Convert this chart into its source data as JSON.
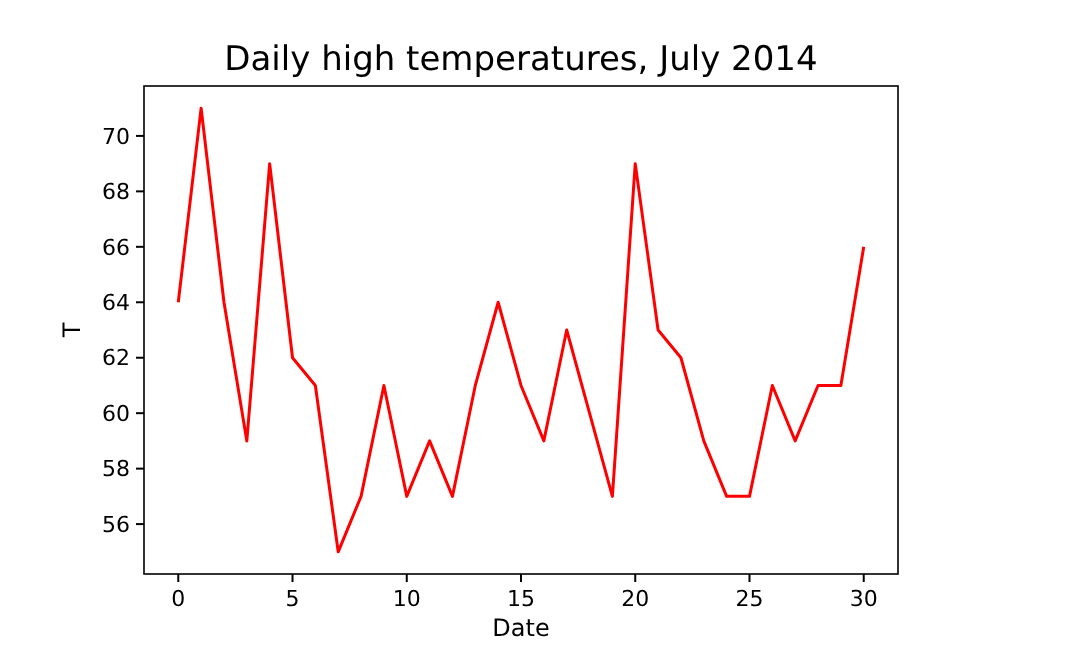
{
  "chart_data": {
    "type": "line",
    "title": "Daily high temperatures, July 2014",
    "xlabel": "Date",
    "ylabel": "T",
    "x": [
      0,
      1,
      2,
      3,
      4,
      5,
      6,
      7,
      8,
      9,
      10,
      11,
      12,
      13,
      14,
      15,
      16,
      17,
      18,
      19,
      20,
      21,
      22,
      23,
      24,
      25,
      26,
      27,
      28,
      29,
      30
    ],
    "series": [
      {
        "color": "#ff0000",
        "values": [
          64,
          71,
          64,
          59,
          69,
          62,
          61,
          55,
          57,
          61,
          57,
          59,
          57,
          61,
          64,
          61,
          59,
          63,
          60,
          57,
          69,
          63,
          62,
          59,
          57,
          57,
          61,
          59,
          61,
          61,
          66
        ]
      }
    ],
    "xlim": [
      -1.5,
      31.5
    ],
    "xticks": [
      0,
      5,
      10,
      15,
      20,
      25,
      30
    ],
    "ylim": [
      54.2,
      71.8
    ],
    "yticks": [
      56,
      58,
      60,
      62,
      64,
      66,
      68,
      70
    ],
    "marker": "none",
    "line_style": "solid"
  }
}
